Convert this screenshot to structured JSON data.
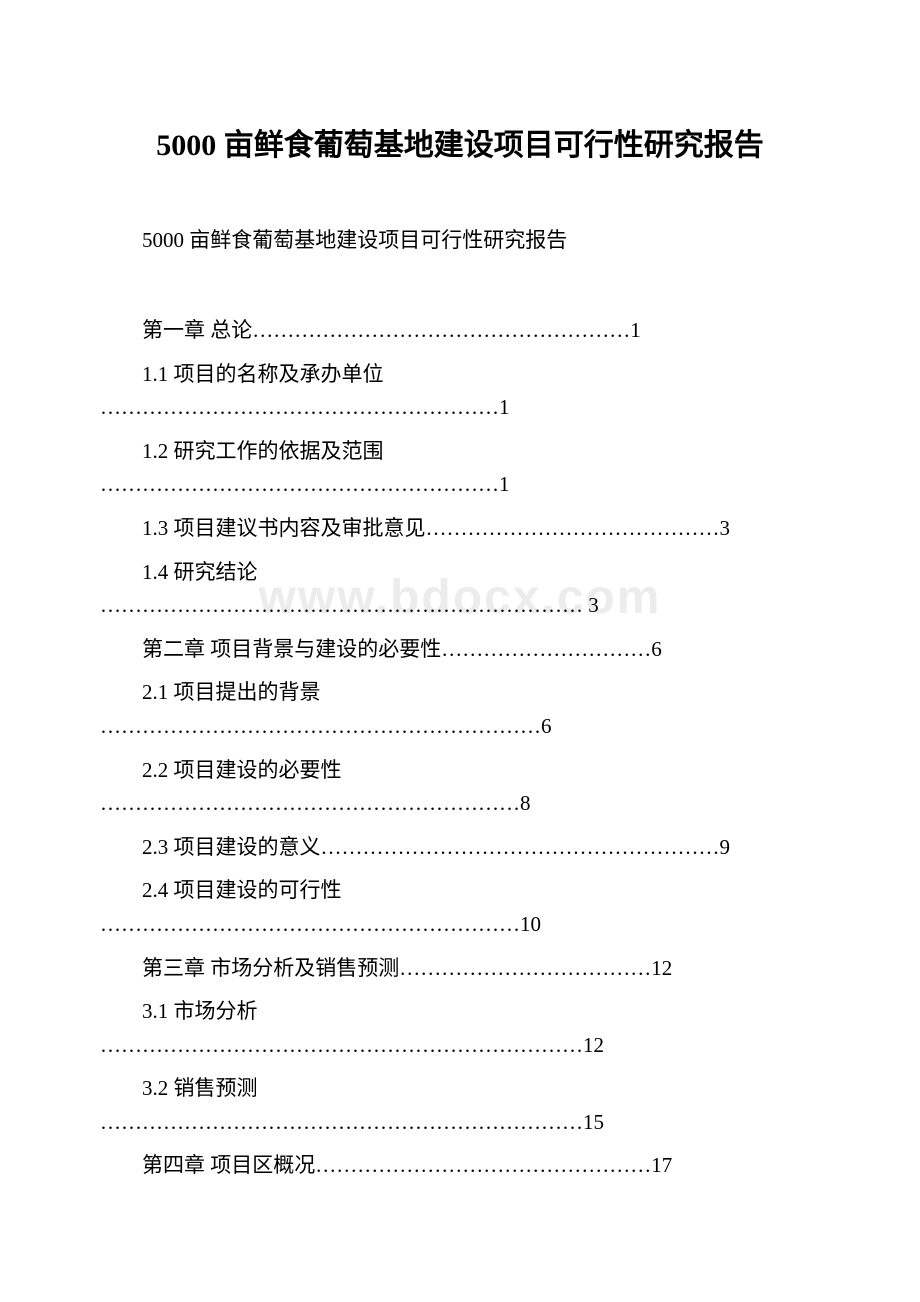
{
  "document": {
    "main_title": "5000 亩鲜食葡萄基地建设项目可行性研究报告",
    "subtitle": "5000 亩鲜食葡萄基地建设项目可行性研究报告",
    "watermark": "www.bdocx.com",
    "background_color": "#ffffff",
    "text_color": "#000000",
    "watermark_color": "rgba(200, 200, 200, 0.35)",
    "title_fontsize": 30,
    "body_fontsize": 21,
    "toc": [
      {
        "label": "第一章 总论",
        "dots": "………………………………………………",
        "page": "1",
        "type": "single",
        "indent": true
      },
      {
        "label": "1.1 项目的名称及承办单位",
        "dots": "…………………………………………………",
        "page": "1",
        "type": "wrap"
      },
      {
        "label": "1.2 研究工作的依据及范围",
        "dots": "…………………………………………………",
        "page": "1",
        "type": "wrap"
      },
      {
        "label": "1.3 项目建议书内容及审批意见",
        "dots": "……………………………………",
        "page": "3",
        "type": "single",
        "indent": true
      },
      {
        "label": "1.4 研究结论",
        "dots": "…………………………………………………………… ",
        "page": "3",
        "type": "wrap"
      },
      {
        "label": "第二章 项目背景与建设的必要性",
        "dots": "…………………………",
        "page": "6",
        "type": "single",
        "indent": true
      },
      {
        "label": "2.1 项目提出的背景",
        "dots": "………………………………………………………",
        "page": "6",
        "type": "wrap"
      },
      {
        "label": "2.2 项目建设的必要性",
        "dots": "……………………………………………………",
        "page": "8",
        "type": "wrap"
      },
      {
        "label": "2.3 项目建设的意义",
        "dots": "…………………………………………………",
        "page": "9",
        "type": "single",
        "indent": true
      },
      {
        "label": "2.4 项目建设的可行性",
        "dots": "……………………………………………………",
        "page": "10",
        "type": "wrap"
      },
      {
        "label": "第三章 市场分析及销售预测",
        "dots": "………………………………",
        "page": "12",
        "type": "single",
        "indent": true
      },
      {
        "label": "3.1 市场分析",
        "dots": "……………………………………………………………",
        "page": "12",
        "type": "wrap"
      },
      {
        "label": "3.2 销售预测",
        "dots": "……………………………………………………………",
        "page": "15",
        "type": "wrap"
      },
      {
        "label": "第四章 项目区概况",
        "dots": "…………………………………………",
        "page": "17",
        "type": "single",
        "indent": true
      }
    ]
  }
}
